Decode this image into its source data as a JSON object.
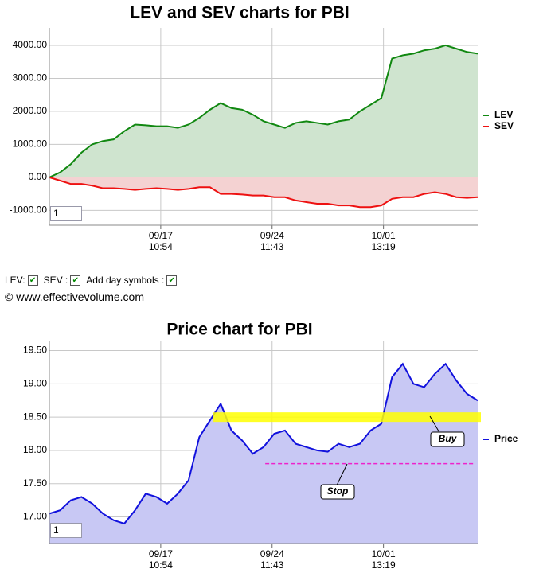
{
  "chart_data": [
    {
      "type": "area",
      "title": "LEV and SEV charts for PBI",
      "x": [
        0,
        2.5,
        5,
        7.5,
        10,
        12.5,
        15,
        17.5,
        20,
        22.5,
        25,
        27.5,
        30,
        32.5,
        35,
        37.5,
        40,
        42.5,
        45,
        47.5,
        50,
        52.5,
        55,
        57.5,
        60,
        62.5,
        65,
        67.5,
        70,
        72.5,
        75,
        77.5,
        80,
        82.5,
        85,
        87.5,
        90,
        92.5,
        95,
        97.5,
        100
      ],
      "series": [
        {
          "name": "LEV",
          "color": "#118811",
          "fill": "#cfe4cf",
          "values": [
            0,
            150,
            400,
            750,
            1000,
            1100,
            1150,
            1400,
            1600,
            1580,
            1550,
            1550,
            1500,
            1600,
            1800,
            2050,
            2250,
            2100,
            2050,
            1900,
            1700,
            1600,
            1500,
            1650,
            1700,
            1650,
            1600,
            1700,
            1750,
            2000,
            2200,
            2400,
            3600,
            3700,
            3750,
            3850,
            3900,
            4000,
            3900,
            3800,
            3750
          ]
        },
        {
          "name": "SEV",
          "color": "#ee1111",
          "fill": "#f4d2d2",
          "values": [
            0,
            -100,
            -200,
            -200,
            -250,
            -330,
            -330,
            -350,
            -380,
            -350,
            -330,
            -350,
            -380,
            -350,
            -300,
            -300,
            -500,
            -500,
            -520,
            -550,
            -550,
            -600,
            -600,
            -700,
            -750,
            -800,
            -800,
            -850,
            -850,
            -900,
            -900,
            -850,
            -650,
            -600,
            -600,
            -500,
            -450,
            -500,
            -600,
            -620,
            -600
          ]
        }
      ],
      "xlim": [
        0,
        100
      ],
      "xticks": [
        {
          "value": 26,
          "label": "09/17\n10:54"
        },
        {
          "value": 52,
          "label": "09/24\n11:43"
        },
        {
          "value": 78,
          "label": "10/01\n13:19"
        }
      ],
      "ylim": [
        -1450,
        4530
      ],
      "yticks": [
        {
          "value": -1000,
          "label": "-1000.00"
        },
        {
          "value": 0,
          "label": "0.00"
        },
        {
          "value": 1000,
          "label": "1000.00"
        },
        {
          "value": 2000,
          "label": "2000.00"
        },
        {
          "value": 3000,
          "label": "3000.00"
        },
        {
          "value": 4000,
          "label": "4000.00"
        }
      ],
      "grid": true,
      "legend": "right"
    },
    {
      "type": "area",
      "title": "Price chart for PBI",
      "x": [
        0,
        2.5,
        5,
        7.5,
        10,
        12.5,
        15,
        17.5,
        20,
        22.5,
        25,
        27.5,
        30,
        32.5,
        35,
        37.5,
        40,
        42.5,
        45,
        47.5,
        50,
        52.5,
        55,
        57.5,
        60,
        62.5,
        65,
        67.5,
        70,
        72.5,
        75,
        77.5,
        80,
        82.5,
        85,
        87.5,
        90,
        92.5,
        95,
        97.5,
        100
      ],
      "series": [
        {
          "name": "Price",
          "color": "#1111dd",
          "fill": "#c8c8f4",
          "values": [
            17.05,
            17.1,
            17.25,
            17.3,
            17.2,
            17.05,
            16.95,
            16.9,
            17.1,
            17.35,
            17.3,
            17.2,
            17.35,
            17.55,
            18.2,
            18.45,
            18.7,
            18.3,
            18.15,
            17.95,
            18.05,
            18.25,
            18.3,
            18.1,
            18.05,
            18.0,
            17.98,
            18.1,
            18.05,
            18.1,
            18.3,
            18.4,
            19.1,
            19.3,
            19.0,
            18.95,
            19.15,
            19.3,
            19.05,
            18.85,
            18.75
          ]
        }
      ],
      "xlim": [
        0,
        100
      ],
      "xticks": [
        {
          "value": 26,
          "label": "09/17\n10:54"
        },
        {
          "value": 52,
          "label": "09/24\n11:43"
        },
        {
          "value": 78,
          "label": "10/01\n13:19"
        }
      ],
      "ylim": [
        16.6,
        19.65
      ],
      "yticks": [
        {
          "value": 17,
          "label": "17.00"
        },
        {
          "value": 17.5,
          "label": "17.50"
        },
        {
          "value": 18,
          "label": "18.00"
        },
        {
          "value": 18.5,
          "label": "18.50"
        },
        {
          "value": 19,
          "label": "19.00"
        },
        {
          "value": 19.5,
          "label": "19.50"
        }
      ],
      "grid": true,
      "legend": "right",
      "annotations": [
        {
          "label": "Buy",
          "value": 18.5,
          "xrange": [
            38.3,
            100
          ],
          "color": "#ffff00"
        },
        {
          "label": "Stop",
          "value": 17.8,
          "xrange": [
            50.4,
            99
          ],
          "color": "#ee22cc"
        }
      ]
    }
  ],
  "zoom_inputs": [
    "1",
    "1"
  ],
  "checkboxes": [
    {
      "label": "LEV:",
      "checked": true
    },
    {
      "label": "SEV :",
      "checked": true
    },
    {
      "label": "Add day symbols :",
      "checked": true
    }
  ],
  "copyright": "© www.effectivevolume.com"
}
